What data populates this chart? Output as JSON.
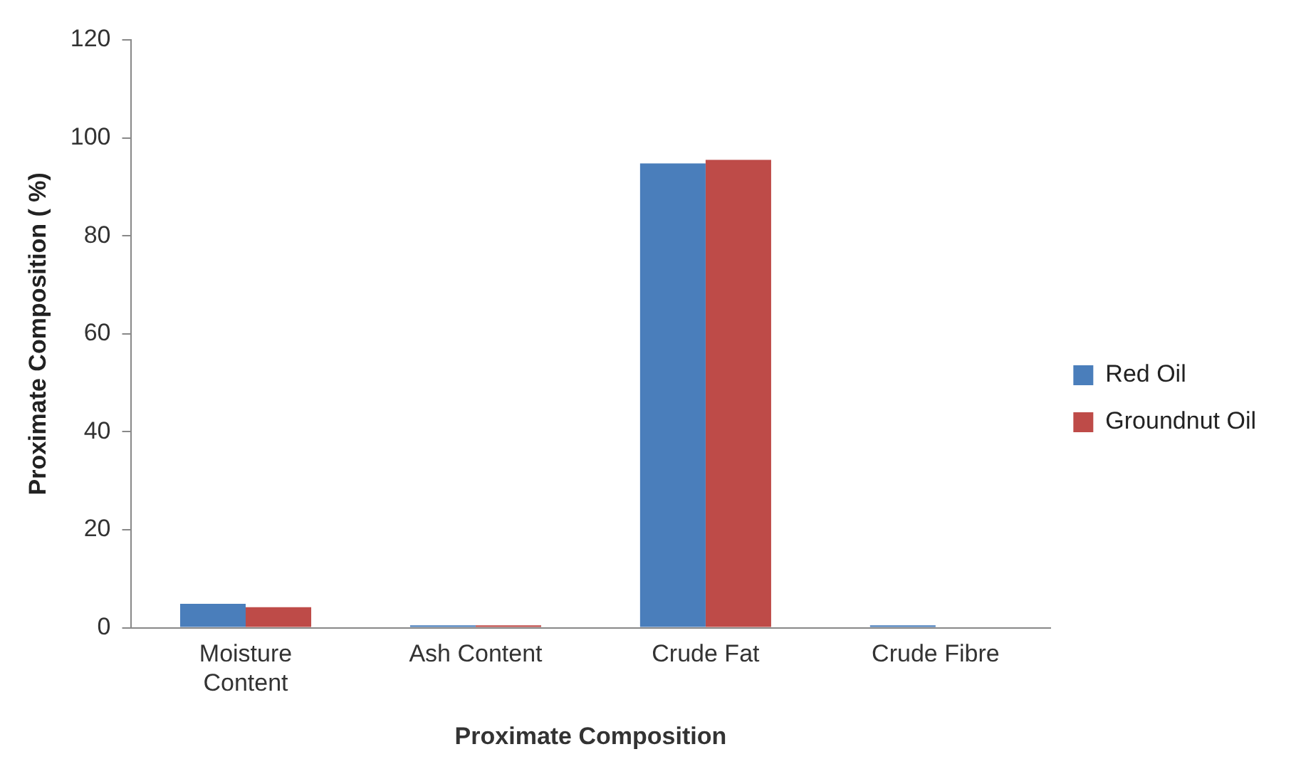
{
  "chart_data": {
    "type": "bar",
    "xlabel": "Proximate Composition",
    "ylabel": "Proximate Composition ( %)",
    "categories": [
      "Moisture\nContent",
      "Ash Content",
      "Crude Fat",
      "Crude Fibre"
    ],
    "series": [
      {
        "name": "Red Oil",
        "color": "#4a7ebb",
        "values": [
          4.9,
          0.5,
          94.8,
          0.5
        ]
      },
      {
        "name": "Groundnut Oil",
        "color": "#be4b48",
        "values": [
          4.2,
          0.5,
          95.5,
          0
        ]
      }
    ],
    "ylim": [
      0,
      120
    ],
    "yticks": [
      0,
      20,
      40,
      60,
      80,
      100,
      120
    ],
    "grid": false,
    "legend": "right"
  }
}
